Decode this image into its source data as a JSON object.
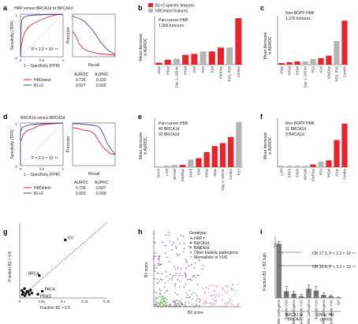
{
  "colors": {
    "red": "#e8232b",
    "blue": "#3a46a0",
    "grey": "#b5b5b5",
    "darkgrey": "#7a7a7a",
    "purple": "#6b4d9a",
    "green": "#6bbf59",
    "pink": "#e07fb0"
  },
  "panels": {
    "a": {
      "label": "a",
      "title": "HRP versus BRCA1d or BRCA2d",
      "roc_ylabel": "Sensitivity (TPR)",
      "roc_xlabel": "1 − Specificity (FPR)",
      "roc_ticks": [
        "0",
        "0.5",
        "1"
      ],
      "p_text": "P < 2.2 × 10⁻¹⁶",
      "pr_ylabel": "Precision",
      "pr_xlabel": "Recall",
      "metric_headers": [
        "AUROC",
        "AUPRC"
      ],
      "rows": [
        {
          "name": "HRDetect",
          "auroc": "0.726",
          "auprc": "0.323"
        },
        {
          "name": "B1+2",
          "auroc": "0.927",
          "auprc": "0.565"
        }
      ]
    },
    "b": {
      "label": "b",
      "legend": [
        "B1+2-specific features",
        "HRDetect features"
      ],
      "cohort": "Pan-cancer HMF",
      "n_text": "1,966 tumours",
      "ylabel": "Mean decrease\nin AUROC"
    },
    "c": {
      "label": "c",
      "cohort": "Non-BOPP HMF",
      "n_text": "1,376 tumours",
      "ylabel": "Mean decrease\nin AUROC"
    },
    "d": {
      "label": "d",
      "title": "BRCA1d versus BRCA2d",
      "roc_ylabel": "Sensitivity (TPR)",
      "roc_xlabel": "1 − Specificity (FPR)",
      "roc_ticks": [
        "0",
        "0.5",
        "1"
      ],
      "p_text": "P < 2.2 × 10⁻¹⁶",
      "pr_ylabel": "Precision",
      "pr_xlabel": "Recall",
      "metric_headers": [
        "AUROC",
        "AUPRC"
      ],
      "rows": [
        {
          "name": "HRDetect",
          "auroc": "0.799",
          "auprc": "0.827"
        },
        {
          "name": "B1+2",
          "auroc": "0.903",
          "auprc": "0.909"
        }
      ]
    },
    "e": {
      "label": "e",
      "cohort": "Pan-cancer HMF",
      "n_text_1": "40 BRCA1d",
      "n_text_2": "92 BRCA2d",
      "ylabel": "Mean decrease\nin AUROC"
    },
    "f": {
      "label": "f",
      "cohort": "Non-BOPP HMF",
      "n_text_1": "11 BRCA1d",
      "n_text_2": "9 BRCA2d",
      "ylabel": "Mean decrease\nin AUROC"
    },
    "g": {
      "label": "g",
      "ylabel": "Fraction B1 > 0.5",
      "xlabel": "Fraction B2 > 0.5"
    },
    "h": {
      "label": "h",
      "legend_title": "Genotype",
      "legend": [
        "HRP",
        "BRCA1d",
        "BRCA2d",
        "Other biallelic pathogenic",
        "Monoallelic or VUS"
      ],
      "xlabel": "B2 score",
      "ylabel": "B1 score"
    },
    "i": {
      "label": "i",
      "ylabel": "Fraction B1 + B2 high",
      "or1": "OR 27.3, P < 2.2 × 10⁻¹⁶",
      "or2": "OR 32.6, P < 2.2 × 10⁻¹⁶",
      "group1": "BRCA1 or\nBRCA2",
      "group2": "Other HR\ngenes"
    }
  },
  "chart_data": [
    {
      "panel": "b",
      "type": "bar",
      "categories": [
        "rDup",
        "lHDel",
        "Dup 1–100 kb",
        "lHDel",
        "rDel",
        "RS3",
        "rDel",
        "rDelDup",
        "RS3, RS5",
        "Combo"
      ],
      "values": [
        0.004,
        0.01,
        0.012,
        0.02,
        0.022,
        0.027,
        0.027,
        0.035,
        0.035,
        0.095
      ],
      "feature_type": [
        "B1+2",
        "B1+2",
        "HRDetect",
        "B1+2",
        "B1+2",
        "HRDetect",
        "B1+2",
        "B1+2",
        "HRDetect",
        "B1+2"
      ]
    },
    {
      "panel": "c",
      "type": "bar",
      "categories": [
        "rDup",
        "lHDel",
        "lHDel",
        "Dup 1–100 kb",
        "RS3",
        "rDel",
        "rDelDup",
        "RS3, RS5",
        "Combo"
      ],
      "values": [
        0.002,
        0.003,
        0.004,
        0.004,
        0.007,
        0.008,
        0.011,
        0.029,
        0.054
      ],
      "feature_type": [
        "B1+2",
        "B1+2",
        "B1+2",
        "HRDetect",
        "HRDetect",
        "B1+2",
        "B1+2",
        "HRDetect",
        "B1+2"
      ]
    },
    {
      "panel": "e",
      "type": "bar",
      "categories": [
        "SNV3",
        "LOH",
        "MH-del",
        "rDelDup",
        "SNV8",
        "rDel",
        "lHDel",
        "rDup",
        "Dup 1–100 kb",
        "Combo",
        "RS3"
      ],
      "values": [
        0.001,
        0.002,
        0.003,
        0.003,
        0.01,
        0.012,
        0.02,
        0.028,
        0.032,
        0.04,
        0.06
      ],
      "feature_type": [
        "HRDetect",
        "HRDetect",
        "HRDetect",
        "B1+2",
        "HRDetect",
        "B1+2",
        "B1+2",
        "B1+2",
        "B1+2",
        "B1+2",
        "HRDetect"
      ]
    },
    {
      "panel": "f",
      "type": "bar",
      "categories": [
        "LOH",
        "SNV3",
        "SNV8",
        "MH-del",
        "rDelDup",
        "RS3",
        "lHDel",
        "rDup",
        "Combo"
      ],
      "values": [
        0.001,
        0.001,
        0.001,
        0.001,
        0.002,
        0.004,
        0.005,
        0.02,
        0.032
      ],
      "feature_type": [
        "HRDetect",
        "HRDetect",
        "HRDetect",
        "HRDetect",
        "B1+2",
        "HRDetect",
        "B1+2",
        "B1+2",
        "B1+2"
      ]
    },
    {
      "panel": "g",
      "type": "scatter",
      "xlim": [
        0,
        0.2
      ],
      "ylim": [
        0,
        0.2
      ],
      "x_ticks": [
        "0",
        "0.05",
        "0.1",
        "0.15",
        "0.20"
      ],
      "points": [
        {
          "label": "OV",
          "x": 0.105,
          "y": 0.155
        },
        {
          "label": "BRCA",
          "x": 0.045,
          "y": 0.06
        },
        {
          "label": "PACA",
          "x": 0.052,
          "y": 0.018
        },
        {
          "label": "PRAD",
          "x": 0.042,
          "y": 0.01
        },
        {
          "label": "",
          "x": 0.005,
          "y": 0.02
        },
        {
          "label": "",
          "x": 0.008,
          "y": 0.015
        },
        {
          "label": "",
          "x": 0.011,
          "y": 0.025
        },
        {
          "label": "",
          "x": 0.014,
          "y": 0.012
        },
        {
          "label": "",
          "x": 0.017,
          "y": 0.018
        },
        {
          "label": "",
          "x": 0.02,
          "y": 0.016
        },
        {
          "label": "",
          "x": 0.025,
          "y": 0.021
        },
        {
          "label": "",
          "x": 0.028,
          "y": 0.013
        },
        {
          "label": "",
          "x": 0.006,
          "y": 0.009
        },
        {
          "label": "",
          "x": 0.012,
          "y": 0.006
        },
        {
          "label": "",
          "x": 0.022,
          "y": 0.009
        }
      ],
      "reference_line": "y = x, dashed"
    },
    {
      "panel": "i",
      "type": "bar",
      "categories": [
        "Biallelic pathogenic",
        "Biallelic VUS",
        "Monoallelic pathogenic",
        "Monoallelic VUS",
        "Biallelic pathogenic",
        "Biallelic VUS",
        "Monoallelic pathogenic",
        "Monoallelic VUS",
        "WT"
      ],
      "values": [
        0.88,
        0.11,
        0.07,
        0.03,
        0.15,
        0.12,
        0.05,
        0.03,
        0.01
      ],
      "errors": [
        0.04,
        0.08,
        0.04,
        0.03,
        0.06,
        0.07,
        0.03,
        0.02,
        0.005
      ],
      "ylim": [
        0,
        1
      ],
      "axis_break": true
    }
  ]
}
